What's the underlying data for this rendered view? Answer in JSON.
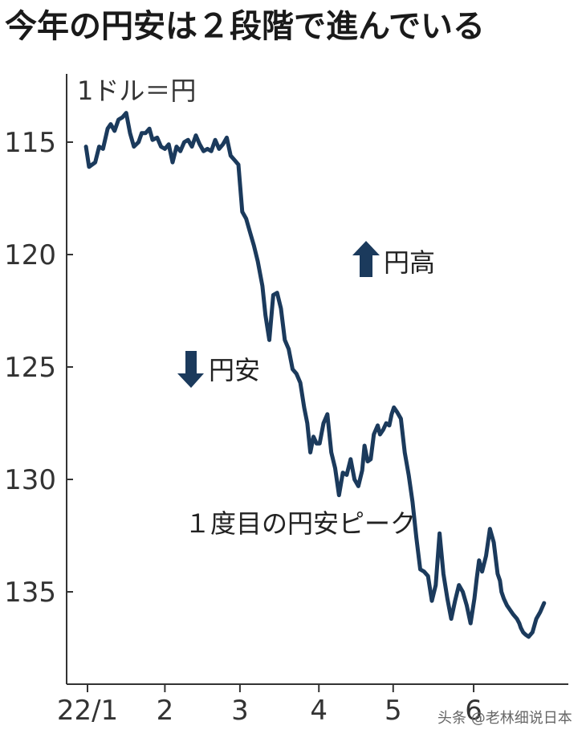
{
  "page": {
    "title": "今年の円安は２段階で進んでいる",
    "watermark": "头条 @老林细说日本"
  },
  "chart_data": {
    "type": "line",
    "unit_label": "1ドル＝円",
    "y_inverted": true,
    "ylim": [
      113,
      138
    ],
    "yticks": [
      115,
      120,
      125,
      130,
      135
    ],
    "xlim": [
      0,
      6.1
    ],
    "x_ticks": [
      {
        "label": "22/1",
        "x": 0
      },
      {
        "label": "2",
        "x": 1
      },
      {
        "label": "3",
        "x": 1.97
      },
      {
        "label": "4",
        "x": 2.99
      },
      {
        "label": "5",
        "x": 3.95
      },
      {
        "label": "6",
        "x": 4.99
      }
    ],
    "annotations": {
      "up_label": "円高",
      "down_label": "円安",
      "peak_label": "１度目の円安ピーク"
    },
    "colors": {
      "line": "#1b3a5c",
      "arrow": "#1b3a5c",
      "axis": "#333333"
    },
    "series": [
      {
        "x": [
          -0.02,
          0.02,
          0.1,
          0.15,
          0.2,
          0.26,
          0.3,
          0.35,
          0.4,
          0.45,
          0.5,
          0.55,
          0.6,
          0.66,
          0.7,
          0.75,
          0.8,
          0.84,
          0.9,
          0.95,
          1.0,
          1.05,
          1.1,
          1.15,
          1.2,
          1.25,
          1.3,
          1.35,
          1.4,
          1.45,
          1.5,
          1.55,
          1.6,
          1.65,
          1.7,
          1.75,
          1.8,
          1.85,
          1.9,
          1.95,
          2.0,
          2.05,
          2.1,
          2.15,
          2.2,
          2.26,
          2.3,
          2.35,
          2.4,
          2.45,
          2.5,
          2.55,
          2.6,
          2.65,
          2.7,
          2.75,
          2.8,
          2.84,
          2.88,
          2.92,
          2.96,
          3.0,
          3.05,
          3.1,
          3.15,
          3.2,
          3.25,
          3.3,
          3.35,
          3.4,
          3.45,
          3.5,
          3.55,
          3.58,
          3.62,
          3.66,
          3.7,
          3.75,
          3.78,
          3.82,
          3.86,
          3.9,
          3.93,
          3.96,
          4.0,
          4.05,
          4.1,
          4.15,
          4.2,
          4.25,
          4.3,
          4.35,
          4.4,
          4.45,
          4.5,
          4.55,
          4.6,
          4.65,
          4.7,
          4.75,
          4.8,
          4.85,
          4.9,
          4.95,
          5.0,
          5.03,
          5.06,
          5.1,
          5.15,
          5.2,
          5.25,
          5.3,
          5.33,
          5.35,
          5.38,
          5.42,
          5.46,
          5.5,
          5.55,
          5.58,
          5.6,
          5.63,
          5.66,
          5.7,
          5.75,
          5.8,
          5.85,
          5.9
        ],
        "values": [
          115.2,
          116.1,
          115.9,
          115.2,
          115.3,
          114.4,
          114.2,
          114.5,
          114.0,
          113.9,
          113.7,
          114.6,
          115.2,
          115.0,
          114.6,
          114.6,
          114.4,
          114.9,
          114.8,
          115.2,
          115.3,
          115.1,
          115.9,
          115.2,
          115.4,
          115.0,
          114.9,
          115.2,
          114.7,
          115.1,
          115.4,
          115.3,
          115.4,
          114.9,
          115.3,
          115.1,
          114.8,
          115.6,
          115.8,
          116.0,
          118.1,
          118.4,
          119.0,
          119.6,
          120.3,
          121.4,
          122.7,
          123.8,
          121.8,
          121.7,
          122.4,
          123.8,
          124.2,
          125.1,
          125.3,
          125.7,
          126.8,
          127.5,
          128.8,
          128.1,
          128.4,
          128.4,
          127.5,
          127.1,
          128.8,
          129.5,
          130.7,
          129.7,
          129.8,
          129.1,
          130.0,
          130.3,
          129.6,
          128.5,
          129.2,
          129.1,
          128.0,
          127.6,
          128.0,
          127.8,
          127.5,
          127.6,
          127.1,
          126.8,
          127.0,
          127.3,
          128.8,
          129.8,
          131.0,
          132.6,
          134.0,
          134.1,
          134.3,
          135.4,
          134.7,
          132.4,
          134.2,
          135.3,
          136.2,
          135.4,
          134.7,
          135.0,
          135.6,
          136.4,
          135.3,
          134.4,
          133.6,
          134.1,
          133.4,
          132.2,
          132.8,
          134.2,
          134.5,
          135.0,
          135.3,
          135.6,
          135.8,
          136.0,
          136.2,
          136.4,
          136.6,
          136.8,
          136.9,
          137.0,
          136.8,
          136.2,
          135.9,
          135.5
        ]
      }
    ]
  }
}
